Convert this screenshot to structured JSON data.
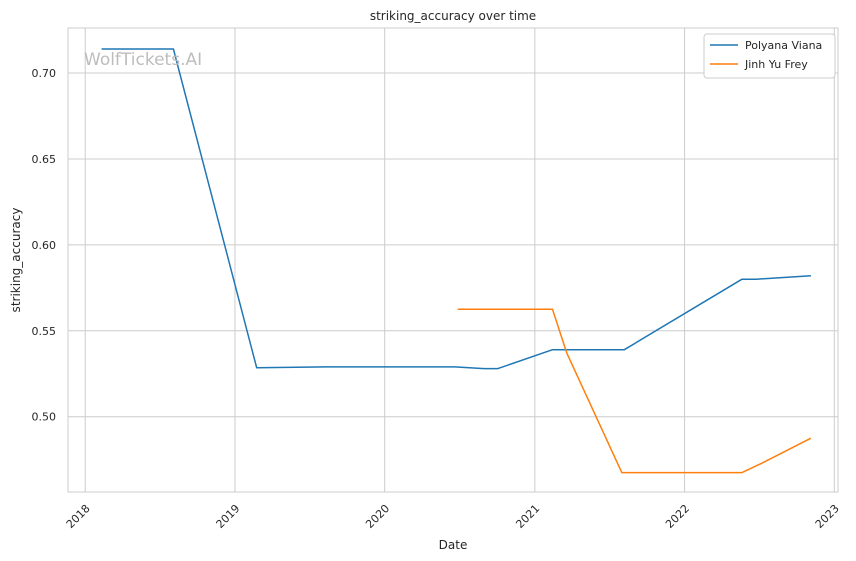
{
  "watermark": "WolfTickets.AI",
  "chart_data": {
    "type": "line",
    "title": "striking_accuracy over time",
    "xlabel": "Date",
    "ylabel": "striking_accuracy",
    "x_is_date": true,
    "xlim": [
      "2017-11-20",
      "2023-01-10"
    ],
    "ylim": [
      0.4562,
      0.7262
    ],
    "x_ticks": [
      {
        "label": "2018",
        "date": "2018-01-01"
      },
      {
        "label": "2019",
        "date": "2019-01-01"
      },
      {
        "label": "2020",
        "date": "2020-01-01"
      },
      {
        "label": "2021",
        "date": "2021-01-01"
      },
      {
        "label": "2022",
        "date": "2022-01-01"
      },
      {
        "label": "2023",
        "date": "2023-01-01"
      }
    ],
    "y_ticks": [
      {
        "label": "0.50",
        "value": 0.5
      },
      {
        "label": "0.55",
        "value": 0.55
      },
      {
        "label": "0.60",
        "value": 0.6
      },
      {
        "label": "0.65",
        "value": 0.65
      },
      {
        "label": "0.70",
        "value": 0.7
      }
    ],
    "grid": true,
    "legend_position": "top-right",
    "series": [
      {
        "name": "Polyana Viana",
        "color": "#1f77b4",
        "points": [
          {
            "x": "2018-02-10",
            "y": 0.714
          },
          {
            "x": "2018-08-04",
            "y": 0.714
          },
          {
            "x": "2019-02-23",
            "y": 0.5285
          },
          {
            "x": "2019-08-10",
            "y": 0.529
          },
          {
            "x": "2020-06-20",
            "y": 0.529
          },
          {
            "x": "2020-08-30",
            "y": 0.528
          },
          {
            "x": "2020-10-03",
            "y": 0.528
          },
          {
            "x": "2021-02-13",
            "y": 0.539
          },
          {
            "x": "2021-08-07",
            "y": 0.539
          },
          {
            "x": "2022-05-21",
            "y": 0.58
          },
          {
            "x": "2022-06-25",
            "y": 0.58
          },
          {
            "x": "2022-11-05",
            "y": 0.582
          }
        ]
      },
      {
        "name": "Jinh Yu Frey",
        "color": "#ff7f0e",
        "points": [
          {
            "x": "2020-06-27",
            "y": 0.5625
          },
          {
            "x": "2021-02-13",
            "y": 0.5625
          },
          {
            "x": "2021-03-20",
            "y": 0.537
          },
          {
            "x": "2021-08-01",
            "y": 0.4675
          },
          {
            "x": "2022-05-21",
            "y": 0.4675
          },
          {
            "x": "2022-07-09",
            "y": 0.473
          },
          {
            "x": "2022-11-05",
            "y": 0.4875
          }
        ]
      }
    ]
  }
}
